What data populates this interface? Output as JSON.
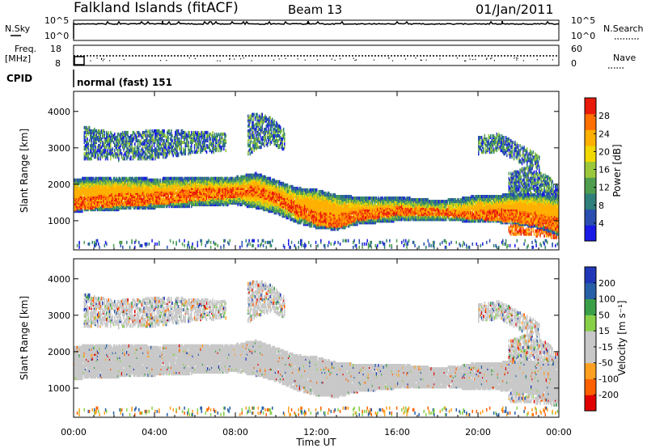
{
  "header": {
    "station": "Falkland Islands (fitACF)",
    "beam": "Beam 13",
    "date": "01/Jan/2011"
  },
  "status": {
    "nsky_label": "N.Sky",
    "nsearch_label": "N.Search",
    "nsky_ticks": [
      "10^5",
      "10^0"
    ],
    "nsearch_ticks": [
      "10^5",
      "10^0"
    ],
    "freq_label": "Freq.",
    "freq_unit": "[MHz]",
    "freq_ticks": [
      "18",
      "8"
    ],
    "nave_label": "Nave",
    "nave_ticks": [
      "60",
      "0"
    ],
    "cpid_label": "CPID",
    "cpid_value": "normal (fast) 151"
  },
  "colors": {
    "power": [
      "#1a1ae6",
      "#2a4fb0",
      "#2f7f7a",
      "#4f9e4f",
      "#9bc83a",
      "#f0d800",
      "#ffb000",
      "#ff7000",
      "#e81a0a"
    ],
    "velocity": [
      "#e00000",
      "#ff6000",
      "#ffa020",
      "#c8c8c8",
      "#c8c8c8",
      "#88d048",
      "#3aa048",
      "#2860a8",
      "#2038b8"
    ],
    "ground_scatter": "#c8c8c8"
  },
  "chart_data": [
    {
      "type": "heatmap",
      "panel": "power",
      "ylabel": "Slant Range [km]",
      "xlabel": "Time UT",
      "x_ticks": [
        "00:00",
        "04:00",
        "08:00",
        "12:00",
        "16:00",
        "20:00",
        "00:00"
      ],
      "y_ticks": [
        1000,
        2000,
        3000,
        4000
      ],
      "ylim": [
        200,
        4550
      ],
      "xlim_hours": [
        0,
        24
      ],
      "colorbar": {
        "label": "Power [dB]",
        "ticks": [
          4,
          8,
          12,
          16,
          20,
          24,
          28
        ],
        "range": [
          0,
          32
        ]
      },
      "bands": [
        {
          "name": "main",
          "t": [
            0,
            2,
            4,
            6,
            8,
            9,
            10,
            11,
            12,
            13,
            14,
            16,
            18,
            19,
            20,
            21,
            22,
            23,
            24
          ],
          "lo": [
            1250,
            1300,
            1350,
            1400,
            1450,
            1350,
            1200,
            950,
            800,
            750,
            900,
            1000,
            1000,
            1000,
            950,
            950,
            900,
            800,
            600
          ],
          "hi": [
            2150,
            2200,
            2150,
            2200,
            2200,
            2300,
            2100,
            1900,
            1850,
            1700,
            1650,
            1650,
            1550,
            1600,
            1700,
            1700,
            1750,
            1750,
            1650
          ],
          "core_lo": [
            1300,
            1400,
            1450,
            1550,
            1650,
            1700,
            1500,
            1150,
            900,
            800,
            1000,
            1150,
            1150,
            1100,
            1050,
            1000,
            950,
            850,
            700
          ],
          "core_hi": [
            1650,
            1750,
            1800,
            1900,
            1900,
            1950,
            1800,
            1500,
            1250,
            1200,
            1300,
            1400,
            1350,
            1300,
            1300,
            1350,
            1300,
            1200,
            1100
          ]
        },
        {
          "name": "upper",
          "t": [
            0.5,
            2,
            4,
            6,
            7.5
          ],
          "lo": [
            2700,
            2650,
            2700,
            2850,
            2900
          ],
          "hi": [
            3600,
            3400,
            3500,
            3450,
            3400
          ]
        },
        {
          "name": "cusp",
          "t": [
            8.6,
            9.2,
            9.8,
            10.4
          ],
          "lo": [
            2800,
            3000,
            3100,
            2900
          ],
          "hi": [
            3900,
            3950,
            3800,
            3500
          ]
        },
        {
          "name": "late",
          "t": [
            20,
            21,
            22,
            23
          ],
          "lo": [
            2800,
            2900,
            2600,
            2300
          ],
          "hi": [
            3300,
            3400,
            3100,
            2800
          ]
        },
        {
          "name": "latelow",
          "t": [
            21.5,
            22.5,
            23.5,
            24
          ],
          "lo": [
            600,
            600,
            550,
            500
          ],
          "hi": [
            2300,
            2500,
            2200,
            1900
          ]
        }
      ]
    },
    {
      "type": "heatmap",
      "panel": "velocity",
      "ylabel": "Slant Range [km]",
      "xlabel": "Time UT",
      "x_ticks": [
        "00:00",
        "04:00",
        "08:00",
        "12:00",
        "16:00",
        "20:00",
        "00:00"
      ],
      "y_ticks": [
        1000,
        2000,
        3000,
        4000
      ],
      "ylim": [
        200,
        4550
      ],
      "xlim_hours": [
        0,
        24
      ],
      "colorbar": {
        "label": "Velocity [m s⁻¹]",
        "ticks": [
          200,
          100,
          50,
          15,
          -15,
          -50,
          -100,
          -200
        ],
        "range": [
          -250,
          250
        ]
      }
    }
  ]
}
